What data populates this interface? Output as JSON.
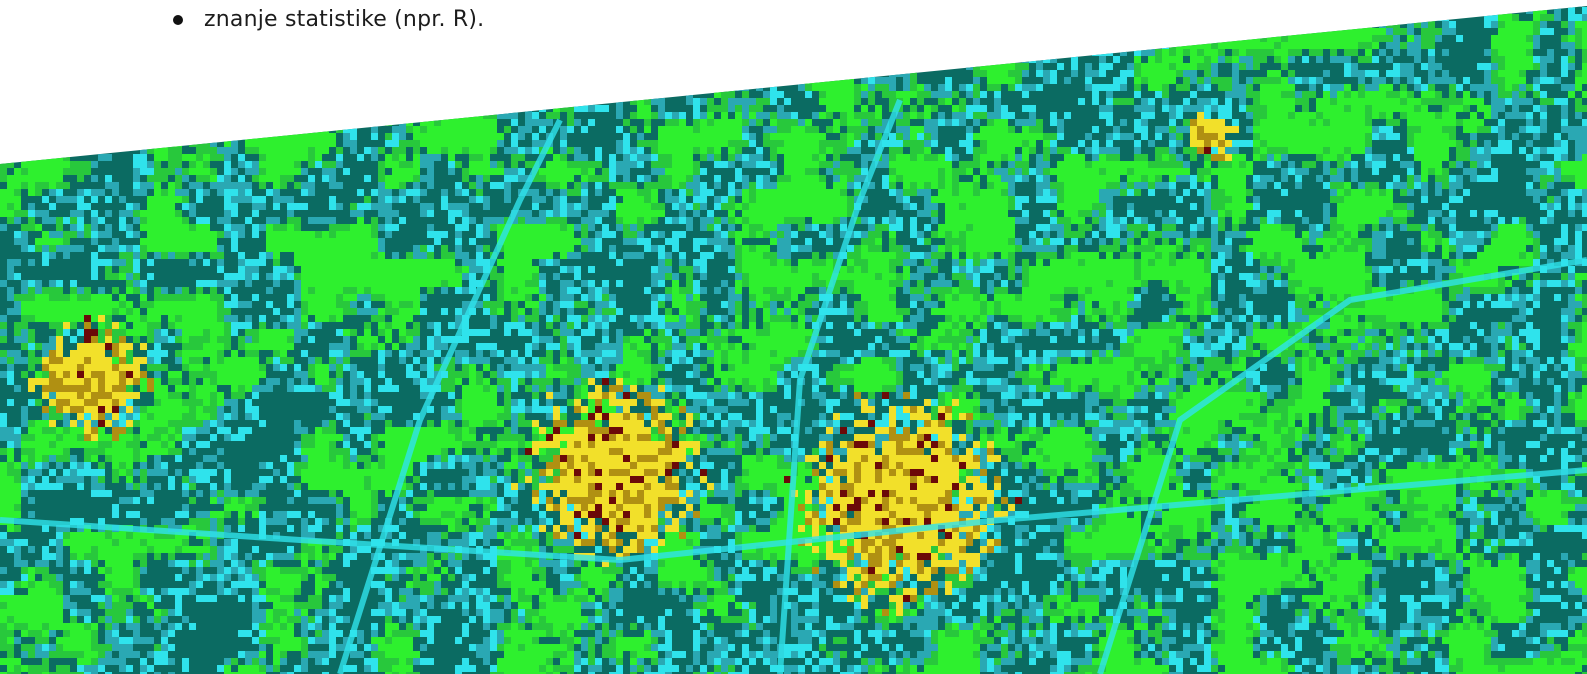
{
  "list": {
    "items": [
      {
        "text": "znanje statistike (npr. R)."
      }
    ]
  },
  "map_banner": {
    "image_kind": "classified satellite land-cover map",
    "palette": {
      "bright_green": "#2ef02e",
      "mid_green": "#28c83c",
      "dark_teal": "#0b6b62",
      "teal": "#2aa8b3",
      "cyan": "#2fe3ec",
      "yellow": "#f2e02a",
      "ochre": "#b09012",
      "dark_red": "#6b0a08"
    }
  }
}
